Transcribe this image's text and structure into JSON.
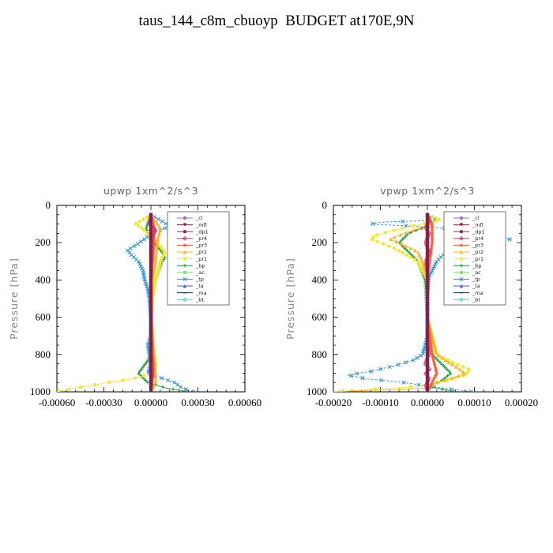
{
  "title": "taus_144_c8m_cbuoyp  BUDGET at170E,9N",
  "legend_entries": [
    "_cl",
    "_mfl",
    "_dp1",
    "_pr4",
    "_pr3",
    "_pr2",
    "_pr1",
    "_bp",
    "_ac",
    "_tp",
    "_ta",
    "_ma",
    "_bt"
  ],
  "colors": {
    "_cl": "#b05fd6",
    "_mfl": "#8a1a3e",
    "_dp1": "#9a2468",
    "_pr4": "#e0245a",
    "_pr3": "#ff5a32",
    "_pr2": "#ffb020",
    "_pr1": "#f2ea2e",
    "_bp": "#1f9a3a",
    "_ac": "#7be36a",
    "_tp": "#2a8fe0",
    "_ta": "#3f5ee0",
    "_ma": "#0a2a40",
    "_bt": "#38d8d8"
  },
  "chart_data": [
    {
      "type": "line",
      "title": "upwp   1xm^2/s^3",
      "ylabel": "Pressure [hPa]",
      "xlabel": "",
      "xlim": [
        -0.0006,
        0.0006
      ],
      "ylim": [
        1000,
        0
      ],
      "y_inverted": true,
      "xticks": [
        -0.0006,
        -0.0003,
        0.0,
        0.0003,
        0.0006
      ],
      "xtick_labels": [
        "-0.00060",
        "-0.00030",
        "0.00000",
        "0.00030",
        "0.00060"
      ],
      "yticks": [
        0,
        200,
        400,
        600,
        800,
        1000
      ],
      "ytick_labels": [
        "0",
        "200",
        "400",
        "600",
        "800",
        "1000"
      ],
      "legend_position": "upper-right",
      "series": [
        {
          "name": "_cl",
          "p": [
            50,
            200,
            400,
            600,
            800,
            1000
          ],
          "x": [
            0,
            0,
            0,
            0,
            0,
            0
          ]
        },
        {
          "name": "_mfl",
          "p": [
            50,
            200,
            400,
            600,
            800,
            1000
          ],
          "x": [
            0,
            0,
            0,
            0,
            0,
            0
          ]
        },
        {
          "name": "_dp1",
          "p": [
            50,
            200,
            400,
            600,
            800,
            1000
          ],
          "x": [
            0,
            0,
            0,
            0,
            0,
            0
          ]
        },
        {
          "name": "_pr4",
          "p": [
            50,
            100,
            130,
            160,
            200,
            300,
            400,
            600,
            800,
            850,
            900,
            950,
            1000
          ],
          "x": [
            0,
            -1e-05,
            3e-05,
            1e-05,
            5e-06,
            5e-06,
            0,
            0,
            5e-06,
            1e-05,
            1e-05,
            5e-06,
            0
          ]
        },
        {
          "name": "_pr3",
          "p": [
            50,
            120,
            200,
            400,
            600,
            800,
            900,
            1000
          ],
          "x": [
            0,
            2e-05,
            2e-05,
            0,
            0,
            5e-06,
            1e-05,
            0
          ]
        },
        {
          "name": "_pr2",
          "p": [
            50,
            120,
            200,
            300,
            400,
            600,
            800,
            900,
            950,
            1000
          ],
          "x": [
            0,
            6e-05,
            4e-05,
            3e-05,
            1e-05,
            5e-06,
            2e-05,
            3e-05,
            3e-05,
            0
          ]
        },
        {
          "name": "_pr1",
          "p": [
            50,
            100,
            120,
            150,
            200,
            250,
            300,
            400,
            500,
            600,
            700,
            800,
            850,
            900,
            930,
            960,
            980,
            1000
          ],
          "x": [
            0,
            -0.0001,
            -6e-05,
            -2e-05,
            4e-05,
            9e-05,
            6e-05,
            3e-05,
            1e-05,
            5e-06,
            1e-05,
            2e-05,
            3e-05,
            2e-05,
            -0.00012,
            -0.00034,
            -0.00049,
            -0.0006
          ]
        },
        {
          "name": "_bp",
          "p": [
            50,
            120,
            150,
            200,
            250,
            280,
            300,
            400,
            500,
            600,
            800,
            900,
            950,
            980,
            1000
          ],
          "x": [
            0,
            -3e-05,
            -2e-05,
            2e-05,
            7e-05,
            9e-05,
            7e-05,
            3e-05,
            1e-05,
            0,
            1e-05,
            -8e-05,
            -2e-05,
            0.0001,
            0.00024
          ]
        },
        {
          "name": "_ac",
          "p": [
            50,
            200,
            400,
            600,
            800,
            1000
          ],
          "x": [
            0,
            0,
            0,
            0,
            0,
            0
          ]
        },
        {
          "name": "_tp",
          "p": [
            50,
            90,
            110,
            130,
            150,
            180,
            210,
            240,
            270,
            300,
            350,
            400,
            450,
            500,
            600,
            700,
            750,
            800,
            850,
            900,
            950,
            980,
            1000
          ],
          "x": [
            0,
            8e-05,
            0.00012,
            7e-05,
            1e-05,
            -4e-05,
            -9e-05,
            -0.00015,
            -0.00012,
            -8e-05,
            -5e-05,
            -4e-05,
            -2e-05,
            -1e-05,
            0,
            0,
            -2e-05,
            -1e-05,
            0,
            -2e-05,
            0.00015,
            0.0002,
            0.00028
          ]
        },
        {
          "name": "_ta",
          "p": [
            50,
            200,
            400,
            600,
            800,
            1000
          ],
          "x": [
            0,
            0,
            0,
            0,
            0,
            0
          ]
        },
        {
          "name": "_ma",
          "p": [
            50,
            200,
            400,
            600,
            800,
            1000
          ],
          "x": [
            0,
            0,
            0,
            0,
            0,
            0
          ]
        },
        {
          "name": "_bt",
          "p": [
            50,
            200,
            400,
            600,
            800,
            1000
          ],
          "x": [
            0,
            0,
            0,
            0,
            0,
            0
          ]
        }
      ]
    },
    {
      "type": "line",
      "title": "vpwp   1xm^2/s^3",
      "ylabel": "Pressure [hPa]",
      "xlabel": "",
      "xlim": [
        -0.0002,
        0.0002
      ],
      "ylim": [
        1000,
        0
      ],
      "y_inverted": true,
      "xticks": [
        -0.0002,
        -0.0001,
        0.0,
        0.0001,
        0.0002
      ],
      "xtick_labels": [
        "-0.00020",
        "-0.00010",
        "0.00000",
        "0.00010",
        "0.00020"
      ],
      "yticks": [
        0,
        200,
        400,
        600,
        800,
        1000
      ],
      "ytick_labels": [
        "0",
        "200",
        "400",
        "600",
        "800",
        "1000"
      ],
      "legend_position": "upper-right",
      "series": [
        {
          "name": "_cl",
          "p": [
            50,
            200,
            400,
            600,
            800,
            1000
          ],
          "x": [
            0,
            0,
            0,
            0,
            0,
            0
          ]
        },
        {
          "name": "_mfl",
          "p": [
            50,
            200,
            400,
            600,
            800,
            1000
          ],
          "x": [
            0,
            0,
            0,
            0,
            0,
            0
          ]
        },
        {
          "name": "_dp1",
          "p": [
            50,
            200,
            400,
            600,
            800,
            1000
          ],
          "x": [
            0,
            0,
            0,
            0,
            0,
            0
          ]
        },
        {
          "name": "_pr4",
          "p": [
            50,
            90,
            120,
            150,
            200,
            250,
            300,
            400,
            500,
            600,
            700,
            800,
            850,
            880,
            900,
            930,
            960,
            1000
          ],
          "x": [
            0,
            3e-06,
            -4e-06,
            4e-06,
            -4e-06,
            4e-06,
            -3e-06,
            2e-06,
            0,
            0,
            0,
            3e-06,
            -5e-06,
            5e-06,
            -4e-06,
            4e-06,
            -3e-06,
            0
          ]
        },
        {
          "name": "_pr3",
          "p": [
            50,
            100,
            200,
            400,
            600,
            800,
            900,
            1000
          ],
          "x": [
            0,
            1e-05,
            1e-05,
            0,
            0,
            1e-05,
            2e-05,
            0
          ]
        },
        {
          "name": "_pr2",
          "p": [
            50,
            100,
            150,
            180,
            200,
            250,
            300,
            400,
            600,
            800,
            850,
            880,
            900,
            920,
            950,
            980,
            1000
          ],
          "x": [
            0,
            1e-05,
            -5e-05,
            -8e-05,
            -6e-05,
            -2e-05,
            -1e-05,
            0,
            0,
            2e-05,
            5e-05,
            7e-05,
            8e-05,
            6e-05,
            2e-05,
            0,
            -0.0002
          ]
        },
        {
          "name": "_pr1",
          "p": [
            50,
            80,
            120,
            160,
            180,
            200,
            230,
            300,
            400,
            600,
            800,
            850,
            880,
            910,
            940,
            970,
            1000
          ],
          "x": [
            0,
            3e-05,
            -5e-05,
            -0.00011,
            -0.00012,
            -0.0001,
            -7e-05,
            -2e-05,
            0,
            0,
            2e-05,
            6e-05,
            9e-05,
            8e-05,
            4e-05,
            -1e-05,
            -0.0002
          ]
        },
        {
          "name": "_bp",
          "p": [
            50,
            100,
            150,
            200,
            250,
            300,
            400,
            600,
            800,
            850,
            900,
            940,
            970,
            1000
          ],
          "x": [
            0,
            1e-05,
            -4e-05,
            -6e-05,
            -4e-05,
            -2e-05,
            -5e-06,
            0,
            1e-05,
            3e-05,
            5e-05,
            3e-05,
            0,
            6e-05
          ]
        },
        {
          "name": "_ac",
          "p": [
            50,
            200,
            400,
            600,
            800,
            1000
          ],
          "x": [
            0,
            0,
            0,
            0,
            0,
            0
          ]
        },
        {
          "name": "_tp",
          "p": [
            50,
            80,
            90,
            100,
            120,
            150,
            180,
            200,
            220,
            250,
            300,
            350,
            400,
            450,
            500,
            600,
            700,
            800,
            830,
            860,
            890,
            910,
            930,
            950,
            980,
            1000
          ],
          "x": [
            0,
            2e-05,
            -0.0001,
            -0.00012,
            3e-05,
            0.00012,
            0.00018,
            0.00013,
            8e-05,
            4e-05,
            2e-05,
            1e-05,
            0,
            0,
            0,
            0,
            0,
            -1e-05,
            -3e-05,
            -7e-05,
            -0.00012,
            -0.00017,
            -0.00013,
            -5e-05,
            3e-05,
            0.0001
          ]
        },
        {
          "name": "_ta",
          "p": [
            50,
            200,
            400,
            600,
            800,
            1000
          ],
          "x": [
            0,
            0,
            0,
            0,
            0,
            0
          ]
        },
        {
          "name": "_ma",
          "p": [
            50,
            200,
            400,
            600,
            800,
            1000
          ],
          "x": [
            0,
            0,
            0,
            0,
            0,
            0
          ]
        },
        {
          "name": "_bt",
          "p": [
            50,
            200,
            400,
            600,
            800,
            1000
          ],
          "x": [
            0,
            0,
            0,
            0,
            0,
            0
          ]
        }
      ]
    }
  ]
}
